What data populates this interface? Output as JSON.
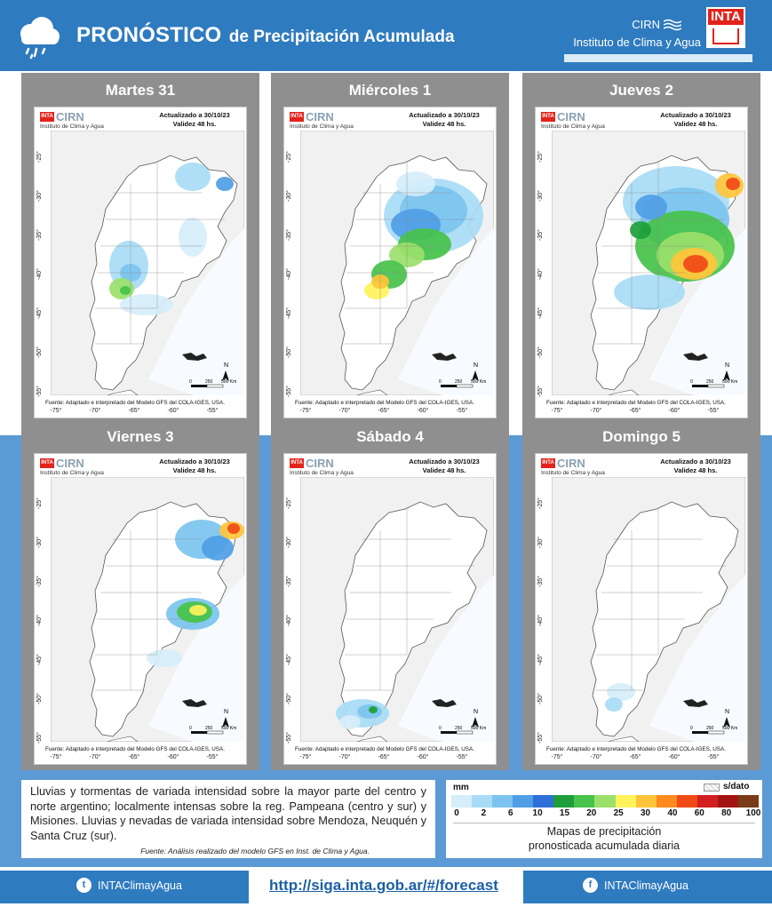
{
  "header": {
    "title_strong": "PRONÓSTICO",
    "title_rest": "de Precipitación Acumulada",
    "brand_cirn": "CIRN",
    "brand_institute": "Instituto de Clima y Agua",
    "brand_inta": "INTA",
    "icon": "rain-cloud-icon"
  },
  "map_common": {
    "logo_inta": "INTA",
    "logo_cirn": "CIRN",
    "logo_inst": "Instituto de Clima y Agua",
    "updated": "Actualizado a 30/10/23",
    "validity": "Validez 48 hs.",
    "source": "Fuente: Adaptado e interpretado del Modelo GFS del COLA-IGES, USA.",
    "x_ticks": [
      "-75°",
      "-70°",
      "-65°",
      "-60°",
      "-55°"
    ],
    "y_ticks": [
      "-25°",
      "-30°",
      "-35°",
      "-40°",
      "-45°",
      "-50°",
      "-55°"
    ],
    "scale_labels": [
      "0",
      "250",
      "500 Km"
    ],
    "north": "N"
  },
  "panels": [
    {
      "day": "Martes 31",
      "rain": "light-patagonia-northeast"
    },
    {
      "day": "Miércoles 1",
      "rain": "moderate-center-north"
    },
    {
      "day": "Jueves 2",
      "rain": "heavy-pampeana-misiones"
    },
    {
      "day": "Viernes 3",
      "rain": "moderate-buenos-aires-misiones"
    },
    {
      "day": "Sábado 4",
      "rain": "light-santa-cruz"
    },
    {
      "day": "Domingo 5",
      "rain": "minimal-patagonia"
    }
  ],
  "description": {
    "text": "Lluvias y tormentas de variada intensidad sobre la mayor parte del centro y norte argentino; localmente intensas sobre la reg. Pampeana (centro y sur) y Misiones. Lluvias y nevadas de variada intensidad sobre Mendoza, Neuquén y Santa Cruz (sur).",
    "source": "Fuente: Análisis realizado del modelo GFS en Inst. de Clima y Agua."
  },
  "legend": {
    "unit": "mm",
    "no_data": "s/dato",
    "ticks": [
      "0",
      "2",
      "6",
      "10",
      "15",
      "20",
      "25",
      "30",
      "40",
      "60",
      "80",
      "100"
    ],
    "colors": [
      "#d6eefa",
      "#a8dcf5",
      "#7cc4ef",
      "#4f9ee6",
      "#2f6fd9",
      "#1d9e3a",
      "#47c24a",
      "#9be06a",
      "#fff35c",
      "#ffc43a",
      "#ff8a1e",
      "#f04a17",
      "#d21f1f",
      "#a51414",
      "#7a3b19"
    ],
    "caption_1": "Mapas de precipitación",
    "caption_2": "pronosticada acumulada diaria"
  },
  "footer": {
    "twitter": "INTAClimayAgua",
    "url": "http://siga.inta.gob.ar/#/forecast",
    "facebook": "INTAClimayAgua"
  }
}
